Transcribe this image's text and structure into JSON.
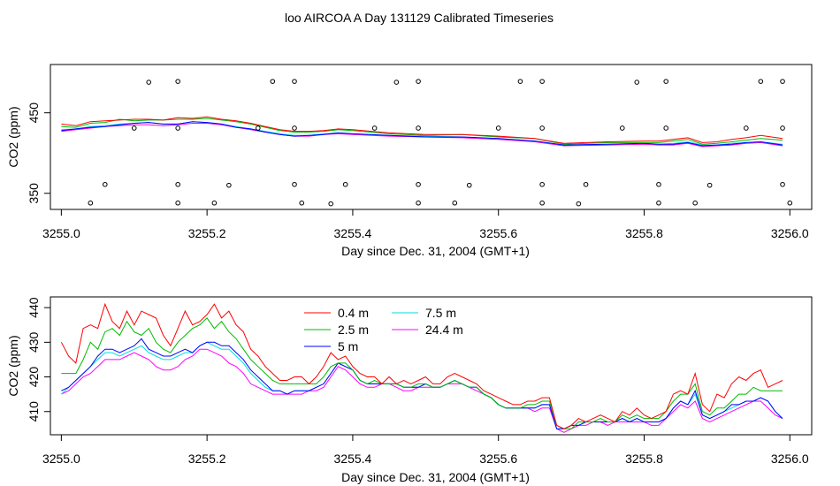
{
  "title": "loo AIRCOA A  Day 131129  Calibrated Timeseries",
  "colors": {
    "0.4 m": "#ff0000",
    "2.5 m": "#00bb00",
    "5 m": "#0000ff",
    "7.5 m": "#00dddd",
    "24.4 m": "#ff00ff",
    "axis": "#000000"
  },
  "chart_data": [
    {
      "type": "line",
      "title": "",
      "xlabel": "Day since Dec. 31, 2004 (GMT+1)",
      "ylabel": "CO2 (ppm)",
      "xlim": [
        3254.985,
        3256.03
      ],
      "ylim": [
        330,
        510
      ],
      "x_ticks": [
        "3255.0",
        "3255.2",
        "3255.4",
        "3255.6",
        "3255.8",
        "3256.0"
      ],
      "y_ticks": [
        "350",
        "450"
      ],
      "x_tick_values": [
        3255.0,
        3255.2,
        3255.4,
        3255.6,
        3255.8,
        3256.0
      ],
      "y_tick_values": [
        350,
        450
      ],
      "grid": false,
      "x": [
        3255.0,
        3255.02,
        3255.04,
        3255.06,
        3255.08,
        3255.1,
        3255.12,
        3255.14,
        3255.16,
        3255.18,
        3255.2,
        3255.22,
        3255.24,
        3255.26,
        3255.28,
        3255.3,
        3255.32,
        3255.34,
        3255.36,
        3255.38,
        3255.4,
        3255.45,
        3255.5,
        3255.55,
        3255.6,
        3255.65,
        3255.69,
        3255.75,
        3255.8,
        3255.82,
        3255.84,
        3255.86,
        3255.88,
        3255.9,
        3255.92,
        3255.94,
        3255.96,
        3255.99
      ],
      "series": [
        {
          "name": "0.4 m",
          "values": [
            436,
            434,
            439,
            440,
            441,
            442,
            442,
            441,
            444,
            443,
            445,
            442,
            440,
            437,
            433,
            429,
            427,
            427,
            428,
            430,
            429,
            425,
            423,
            423,
            421,
            418,
            412,
            414,
            415,
            415,
            417,
            419,
            413,
            414,
            417,
            419,
            422,
            418
          ]
        },
        {
          "name": "2.5 m",
          "values": [
            433,
            432,
            437,
            438,
            442,
            440,
            441,
            441,
            442,
            442,
            443,
            441,
            439,
            436,
            432,
            428,
            426,
            426,
            427,
            429,
            428,
            424,
            422,
            423,
            420,
            418,
            411,
            413,
            413,
            413,
            415,
            417,
            411,
            412,
            414,
            416,
            418,
            416
          ]
        },
        {
          "name": "5 m",
          "values": [
            428,
            430,
            432,
            433,
            435,
            437,
            438,
            436,
            436,
            439,
            438,
            436,
            432,
            430,
            426,
            423,
            421,
            422,
            423,
            425,
            424,
            422,
            420,
            420,
            418,
            415,
            410,
            411,
            412,
            411,
            411,
            413,
            409,
            410,
            411,
            413,
            414,
            410
          ]
        },
        {
          "name": "7.5 m",
          "values": [
            429,
            430,
            433,
            434,
            436,
            437,
            438,
            436,
            436,
            439,
            438,
            436,
            433,
            430,
            427,
            424,
            422,
            422,
            424,
            425,
            424,
            422,
            421,
            420,
            418,
            415,
            410,
            411,
            412,
            411,
            412,
            414,
            410,
            410,
            412,
            413,
            414,
            411
          ]
        },
        {
          "name": "24.4 m",
          "values": [
            427,
            429,
            431,
            433,
            434,
            435,
            435,
            434,
            435,
            437,
            437,
            435,
            432,
            429,
            426,
            423,
            421,
            421,
            423,
            424,
            423,
            421,
            420,
            419,
            417,
            414,
            409,
            410,
            411,
            410,
            410,
            412,
            408,
            409,
            410,
            412,
            413,
            409
          ]
        }
      ],
      "markers": {
        "x": [
          3255.12,
          3255.16,
          3255.29,
          3255.32,
          3255.46,
          3255.49,
          3255.63,
          3255.66,
          3255.79,
          3255.83,
          3255.96,
          3255.99,
          3255.27,
          3255.32,
          3255.43,
          3255.49,
          3255.6,
          3255.66,
          3255.77,
          3255.83,
          3255.94,
          3255.99,
          3255.06,
          3255.16,
          3255.23,
          3255.32,
          3255.39,
          3255.49,
          3255.56,
          3255.66,
          3255.72,
          3255.82,
          3255.89,
          3255.99,
          3255.04,
          3255.16,
          3255.21,
          3255.33,
          3255.37,
          3255.49,
          3255.54,
          3255.66,
          3255.71,
          3255.82,
          3255.87,
          3256.0,
          3255.1,
          3255.16
        ],
        "y": [
          488,
          489,
          489,
          489,
          488,
          489,
          489,
          489,
          488,
          489,
          489,
          489,
          431,
          431,
          431,
          431,
          431,
          431,
          431,
          431,
          431,
          431,
          361,
          361,
          360,
          361,
          361,
          361,
          360,
          361,
          361,
          361,
          360,
          361,
          338,
          338,
          338,
          338,
          337,
          338,
          338,
          338,
          337,
          338,
          338,
          338,
          431,
          431
        ]
      }
    },
    {
      "type": "line",
      "title": "",
      "xlabel": "Day since Dec. 31, 2004 (GMT+1)",
      "ylabel": "CO2 (ppm)",
      "xlim": [
        3254.985,
        3256.03
      ],
      "ylim": [
        403.3,
        443.1
      ],
      "x_ticks": [
        "3255.0",
        "3255.2",
        "3255.4",
        "3255.6",
        "3255.8",
        "3256.0"
      ],
      "y_ticks": [
        "410",
        "420",
        "430",
        "440"
      ],
      "x_tick_values": [
        3255.0,
        3255.2,
        3255.4,
        3255.6,
        3255.8,
        3256.0
      ],
      "y_tick_values": [
        410,
        420,
        430,
        440
      ],
      "grid": false,
      "legend": "top-center",
      "x": [
        3255.0,
        3255.01,
        3255.02,
        3255.03,
        3255.04,
        3255.05,
        3255.06,
        3255.07,
        3255.08,
        3255.09,
        3255.1,
        3255.11,
        3255.12,
        3255.13,
        3255.14,
        3255.15,
        3255.16,
        3255.17,
        3255.18,
        3255.19,
        3255.2,
        3255.21,
        3255.22,
        3255.23,
        3255.24,
        3255.25,
        3255.26,
        3255.27,
        3255.28,
        3255.29,
        3255.3,
        3255.31,
        3255.32,
        3255.33,
        3255.34,
        3255.35,
        3255.36,
        3255.37,
        3255.38,
        3255.39,
        3255.4,
        3255.41,
        3255.42,
        3255.43,
        3255.44,
        3255.45,
        3255.46,
        3255.47,
        3255.48,
        3255.49,
        3255.5,
        3255.51,
        3255.52,
        3255.53,
        3255.54,
        3255.55,
        3255.56,
        3255.57,
        3255.58,
        3255.59,
        3255.6,
        3255.61,
        3255.62,
        3255.63,
        3255.64,
        3255.65,
        3255.66,
        3255.67,
        3255.68,
        3255.69,
        3255.7,
        3255.71,
        3255.72,
        3255.73,
        3255.74,
        3255.75,
        3255.76,
        3255.77,
        3255.78,
        3255.79,
        3255.8,
        3255.81,
        3255.82,
        3255.83,
        3255.84,
        3255.85,
        3255.86,
        3255.87,
        3255.88,
        3255.89,
        3255.9,
        3255.91,
        3255.92,
        3255.93,
        3255.94,
        3255.95,
        3255.96,
        3255.97,
        3255.98,
        3255.99
      ],
      "series": [
        {
          "name": "0.4 m",
          "values": [
            430,
            426,
            424,
            434,
            435,
            434,
            441,
            436,
            434,
            439,
            435,
            439,
            438,
            437,
            432,
            429,
            434,
            439,
            435,
            436,
            438,
            441,
            437,
            439,
            435,
            433,
            428,
            426,
            423,
            421,
            419,
            419,
            420,
            420,
            418,
            420,
            423,
            427,
            425,
            426,
            423,
            421,
            420,
            420,
            418,
            420,
            418,
            419,
            418,
            419,
            420,
            418,
            418,
            420,
            421,
            420,
            419,
            418,
            416,
            415,
            414,
            413,
            412,
            412,
            413,
            413,
            414,
            414,
            406,
            405,
            406,
            408,
            407,
            408,
            409,
            408,
            407,
            410,
            409,
            411,
            409,
            408,
            409,
            410,
            415,
            416,
            415,
            421,
            412,
            410,
            415,
            414,
            418,
            420,
            419,
            421,
            422,
            417,
            418,
            419
          ]
        },
        {
          "name": "2.5 m",
          "values": [
            421,
            421,
            421,
            425,
            430,
            428,
            433,
            434,
            432,
            436,
            433,
            432,
            434,
            430,
            428,
            427,
            430,
            432,
            434,
            435,
            437,
            434,
            436,
            433,
            431,
            428,
            425,
            423,
            421,
            419,
            418,
            418,
            418,
            418,
            418,
            418,
            420,
            423,
            424,
            424,
            422,
            419,
            418,
            419,
            418,
            418,
            418,
            417,
            417,
            418,
            418,
            417,
            417,
            418,
            419,
            418,
            417,
            417,
            415,
            414,
            412,
            411,
            411,
            411,
            412,
            412,
            413,
            413,
            406,
            405,
            405,
            407,
            407,
            407,
            408,
            407,
            407,
            409,
            408,
            409,
            408,
            408,
            408,
            410,
            413,
            415,
            415,
            418,
            410,
            409,
            411,
            411,
            413,
            415,
            415,
            417,
            416,
            416,
            416,
            416
          ]
        },
        {
          "name": "5 m",
          "values": [
            416,
            417,
            419,
            421,
            423,
            426,
            428,
            428,
            427,
            428,
            429,
            431,
            428,
            427,
            426,
            426,
            427,
            428,
            427,
            429,
            430,
            430,
            429,
            429,
            427,
            425,
            422,
            420,
            418,
            416,
            416,
            415,
            416,
            416,
            416,
            417,
            418,
            421,
            424,
            423,
            422,
            419,
            418,
            418,
            418,
            418,
            418,
            417,
            417,
            417,
            418,
            417,
            417,
            418,
            419,
            418,
            417,
            417,
            415,
            414,
            412,
            411,
            411,
            411,
            411,
            411,
            412,
            412,
            405,
            405,
            406,
            406,
            407,
            407,
            407,
            407,
            407,
            408,
            407,
            408,
            407,
            407,
            407,
            408,
            411,
            413,
            412,
            416,
            409,
            408,
            409,
            410,
            412,
            412,
            413,
            413,
            414,
            413,
            410,
            408
          ]
        },
        {
          "name": "7.5 m",
          "values": [
            415,
            417,
            419,
            421,
            423,
            425,
            427,
            427,
            426,
            427,
            428,
            429,
            427,
            426,
            425,
            425,
            426,
            427,
            427,
            429,
            430,
            429,
            428,
            428,
            426,
            424,
            421,
            419,
            417,
            416,
            416,
            415,
            416,
            416,
            416,
            417,
            418,
            421,
            424,
            423,
            422,
            419,
            418,
            418,
            418,
            418,
            418,
            417,
            417,
            417,
            418,
            417,
            417,
            418,
            419,
            418,
            417,
            417,
            415,
            414,
            412,
            411,
            411,
            411,
            411,
            411,
            412,
            412,
            405,
            405,
            406,
            406,
            407,
            407,
            407,
            407,
            407,
            408,
            407,
            408,
            407,
            407,
            407,
            408,
            411,
            413,
            412,
            415,
            409,
            408,
            409,
            410,
            411,
            412,
            413,
            413,
            414,
            413,
            410,
            408
          ]
        },
        {
          "name": "24.4 m",
          "values": [
            415,
            416,
            418,
            420,
            421,
            423,
            425,
            425,
            425,
            426,
            427,
            426,
            425,
            423,
            422,
            422,
            423,
            425,
            426,
            428,
            428,
            427,
            426,
            424,
            423,
            421,
            418,
            417,
            416,
            415,
            415,
            415,
            415,
            415,
            416,
            416,
            417,
            420,
            423,
            422,
            420,
            418,
            417,
            417,
            418,
            418,
            417,
            416,
            416,
            417,
            417,
            417,
            417,
            418,
            418,
            418,
            417,
            416,
            415,
            414,
            412,
            411,
            411,
            411,
            411,
            410,
            411,
            411,
            405,
            404,
            405,
            406,
            406,
            407,
            407,
            406,
            407,
            407,
            407,
            407,
            407,
            406,
            406,
            408,
            410,
            412,
            411,
            413,
            408,
            407,
            408,
            409,
            410,
            411,
            412,
            413,
            413,
            411,
            409,
            408
          ]
        }
      ]
    }
  ]
}
